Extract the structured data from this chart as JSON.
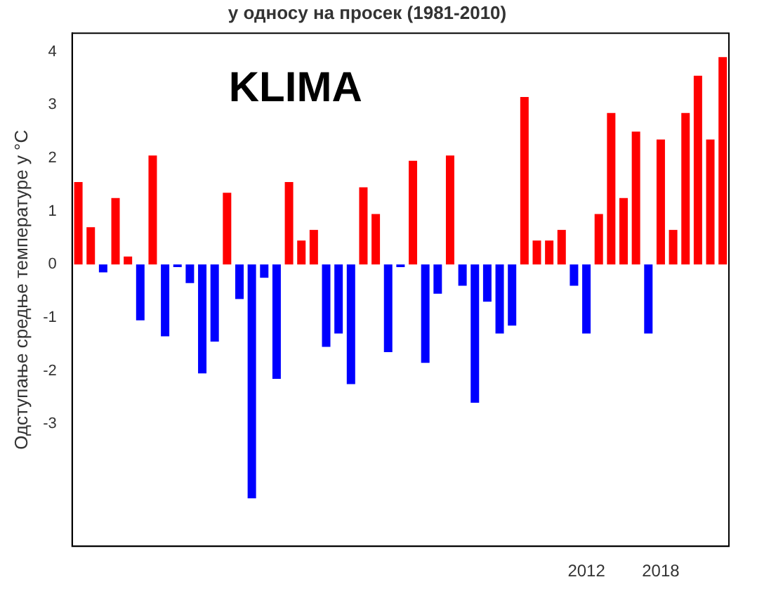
{
  "chart_data": {
    "type": "bar",
    "title": "у односу на просек (1981-2010)",
    "ylabel": "Одступање средње температуре у °C",
    "annotations": [
      "KLIMA"
    ],
    "categories": [
      null,
      null,
      null,
      null,
      null,
      null,
      null,
      null,
      null,
      null,
      null,
      null,
      null,
      null,
      null,
      null,
      null,
      null,
      null,
      null,
      null,
      null,
      null,
      null,
      null,
      null,
      null,
      null,
      null,
      null,
      null,
      null,
      null,
      null,
      null,
      null,
      null,
      null,
      null,
      null,
      null,
      "2012",
      null,
      null,
      null,
      null,
      null,
      "2018",
      null,
      null,
      null,
      null,
      null
    ],
    "values": [
      1.55,
      0.7,
      -0.15,
      1.25,
      0.15,
      -1.05,
      2.05,
      -1.35,
      -0.05,
      -0.35,
      -2.05,
      -1.45,
      1.35,
      -0.65,
      -4.4,
      -0.25,
      -2.15,
      1.55,
      0.45,
      0.65,
      -1.55,
      -1.3,
      -2.25,
      1.45,
      0.95,
      -1.65,
      -0.05,
      1.95,
      -1.85,
      -0.55,
      2.05,
      -0.4,
      -2.6,
      -0.7,
      -1.3,
      -1.15,
      3.15,
      0.45,
      0.45,
      0.65,
      -0.4,
      -1.3,
      0.95,
      2.85,
      1.25,
      2.5,
      -1.3,
      2.35,
      0.65,
      2.85,
      3.55,
      2.35,
      3.9
    ],
    "colors": [
      "#ff0000",
      "#ff0000",
      "#0000ff",
      "#ff0000",
      "#ff0000",
      "#0000ff",
      "#ff0000",
      "#0000ff",
      "#0000ff",
      "#0000ff",
      "#0000ff",
      "#0000ff",
      "#ff0000",
      "#0000ff",
      "#0000ff",
      "#0000ff",
      "#0000ff",
      "#ff0000",
      "#ff0000",
      "#ff0000",
      "#0000ff",
      "#0000ff",
      "#0000ff",
      "#ff0000",
      "#ff0000",
      "#0000ff",
      "#0000ff",
      "#ff0000",
      "#0000ff",
      "#0000ff",
      "#ff0000",
      "#0000ff",
      "#0000ff",
      "#0000ff",
      "#0000ff",
      "#0000ff",
      "#ff0000",
      "#ff0000",
      "#ff0000",
      "#ff0000",
      "#0000ff",
      "#0000ff",
      "#ff0000",
      "#ff0000",
      "#ff0000",
      "#ff0000",
      "#0000ff",
      "#ff0000",
      "#ff0000",
      "#ff0000",
      "#ff0000",
      "#ff0000",
      "#ff0000"
    ],
    "ylim": [
      -5.3,
      4.35
    ],
    "yticks": [
      -3,
      -2,
      -1,
      0,
      1,
      2,
      3,
      4
    ]
  }
}
